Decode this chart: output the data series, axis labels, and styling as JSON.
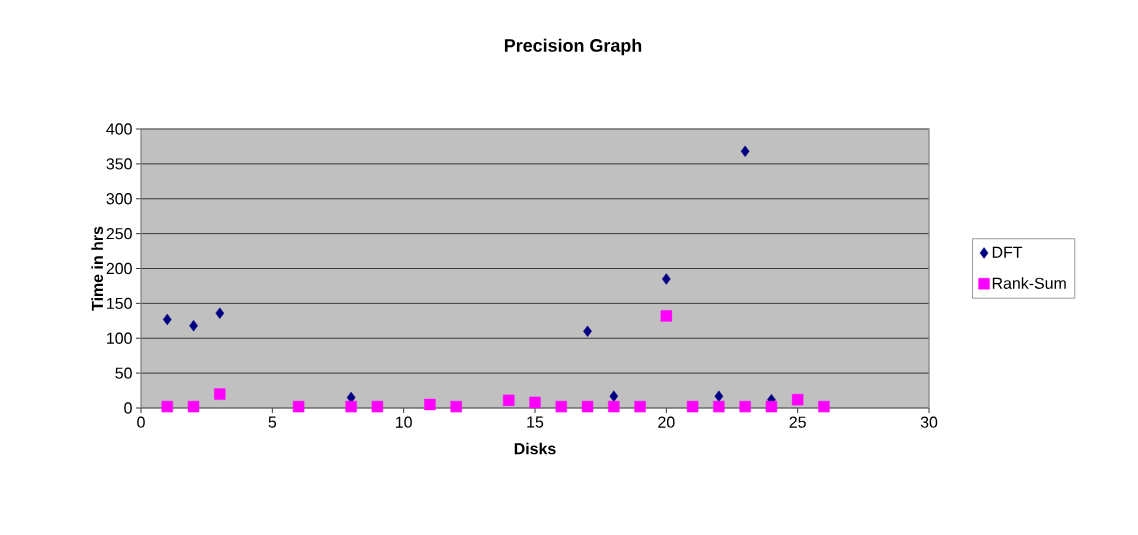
{
  "chart_data": {
    "type": "scatter",
    "title": "Precision Graph",
    "xlabel": "Disks",
    "ylabel": "Time in hrs",
    "xlim": [
      0,
      30
    ],
    "xticks": [
      0,
      5,
      10,
      15,
      20,
      25,
      30
    ],
    "ylim": [
      0,
      400
    ],
    "yticks": [
      0,
      50,
      100,
      150,
      200,
      250,
      300,
      350,
      400
    ],
    "grid": "y",
    "legend": "right",
    "series": [
      {
        "name": "DFT",
        "color": "#000080",
        "marker": "diamond",
        "x": [
          1,
          2,
          3,
          8,
          17,
          18,
          20,
          22,
          23,
          24
        ],
        "values": [
          127,
          118,
          136,
          15,
          110,
          17,
          185,
          17,
          368,
          12
        ]
      },
      {
        "name": "Rank-Sum",
        "color": "#ff00ff",
        "marker": "square",
        "x": [
          1,
          2,
          3,
          6,
          8,
          9,
          11,
          12,
          14,
          15,
          16,
          17,
          18,
          19,
          20,
          21,
          22,
          23,
          24,
          25,
          26
        ],
        "values": [
          2,
          2,
          20,
          2,
          2,
          2,
          5,
          2,
          11,
          8,
          2,
          2,
          2,
          2,
          132,
          2,
          2,
          2,
          2,
          12,
          2
        ]
      }
    ]
  }
}
